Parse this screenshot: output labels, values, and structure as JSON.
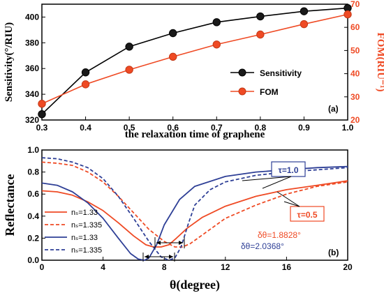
{
  "chart_data": [
    {
      "type": "line",
      "panel_label": "(a)",
      "xlabel": "the relaxation time of graphene",
      "ylabel": "Sensitivity(°/RIU)",
      "ylabel_right": "FOM(RIU⁻¹)",
      "x": [
        0.3,
        0.4,
        0.5,
        0.6,
        0.7,
        0.8,
        0.9,
        1.0
      ],
      "xlim": [
        0.3,
        1.0
      ],
      "ylim": [
        320,
        410
      ],
      "ylim_right": [
        20,
        70
      ],
      "x_ticks": [
        "0.3",
        "0.4",
        "0.5",
        "0.6",
        "0.7",
        "0.8",
        "0.9",
        "1.0"
      ],
      "y_ticks": [
        "320",
        "340",
        "360",
        "380",
        "400"
      ],
      "y_ticks_right": [
        "20",
        "30",
        "40",
        "50",
        "60",
        "70"
      ],
      "legend_position": "center-right",
      "series": [
        {
          "name": "Sensitivity",
          "axis": "left",
          "color": "#000000",
          "marker": "circle",
          "values": [
            324.5,
            357,
            377,
            387.5,
            396,
            400.5,
            404.5,
            407
          ]
        },
        {
          "name": "FOM",
          "axis": "right",
          "color": "#ef4a24",
          "marker": "circle",
          "values": [
            27.0,
            35.4,
            41.7,
            47.3,
            52.6,
            56.9,
            61.4,
            65.6
          ]
        }
      ]
    },
    {
      "type": "line",
      "panel_label": "(b)",
      "xlabel": "θ(degree)",
      "ylabel": "Reflectance",
      "xlim": [
        0,
        20
      ],
      "ylim": [
        0,
        1.0
      ],
      "x_ticks": [
        "0",
        "4",
        "8",
        "12",
        "16",
        "20"
      ],
      "y_ticks": [
        "0.0",
        "0.2",
        "0.4",
        "0.6",
        "0.8",
        "1.0"
      ],
      "legend_position": "bottom-left",
      "annotations": {
        "tau1": "τ=1.0",
        "tau05": "τ=0.5",
        "delta1": "δθ=1.8828°",
        "delta2": "δθ=2.0368°"
      },
      "series": [
        {
          "name": "nₛ=1.33",
          "color": "#ef4a24",
          "dash": "solid",
          "x": [
            0,
            1,
            2,
            3,
            4,
            5,
            6,
            6.8,
            7.3,
            7.8,
            8.3,
            8.8,
            9.5,
            10.5,
            12,
            14,
            16,
            18,
            20
          ],
          "values": [
            0.63,
            0.62,
            0.59,
            0.53,
            0.45,
            0.34,
            0.22,
            0.14,
            0.12,
            0.12,
            0.14,
            0.2,
            0.29,
            0.39,
            0.49,
            0.58,
            0.64,
            0.68,
            0.72
          ]
        },
        {
          "name": "nₛ=1.335",
          "color": "#ef4a24",
          "dash": "dashed",
          "x": [
            0,
            1,
            2,
            3,
            4,
            5,
            6,
            7,
            8,
            8.7,
            9.2,
            9.7,
            10.2,
            11,
            12,
            14,
            16,
            18,
            20
          ],
          "values": [
            0.89,
            0.88,
            0.86,
            0.8,
            0.71,
            0.58,
            0.43,
            0.28,
            0.17,
            0.12,
            0.12,
            0.15,
            0.2,
            0.28,
            0.38,
            0.5,
            0.6,
            0.67,
            0.71
          ]
        },
        {
          "name": "nₛ=1.33",
          "color": "#2e3f96",
          "dash": "solid",
          "x": [
            0,
            1,
            2,
            3,
            4,
            5,
            5.8,
            6.3,
            6.7,
            7.0,
            7.5,
            8,
            9,
            10,
            12,
            14,
            16,
            18,
            20
          ],
          "values": [
            0.7,
            0.68,
            0.62,
            0.52,
            0.38,
            0.2,
            0.06,
            0.01,
            0.0,
            0.02,
            0.14,
            0.32,
            0.55,
            0.67,
            0.76,
            0.8,
            0.82,
            0.84,
            0.85
          ]
        },
        {
          "name": "nₛ=1.335",
          "color": "#2e3f96",
          "dash": "dashed",
          "x": [
            0,
            1,
            2,
            3,
            4,
            5,
            6,
            7,
            7.8,
            8.3,
            8.7,
            9.1,
            9.6,
            10,
            11,
            12,
            14,
            16,
            18,
            20
          ],
          "values": [
            0.93,
            0.92,
            0.89,
            0.84,
            0.74,
            0.58,
            0.38,
            0.17,
            0.03,
            0.0,
            0.02,
            0.12,
            0.34,
            0.5,
            0.64,
            0.71,
            0.77,
            0.8,
            0.82,
            0.84
          ]
        }
      ]
    }
  ]
}
